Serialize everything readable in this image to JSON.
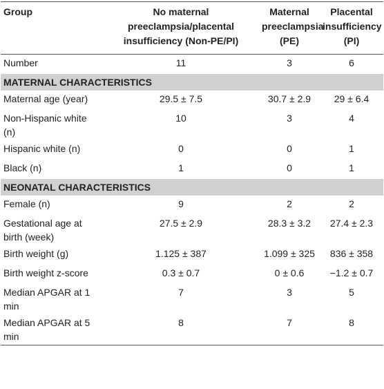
{
  "table": {
    "header": [
      "Group",
      "No maternal preeclampsia/placental insufficiency (Non-PE/PI)",
      "Maternal preeclampsia (PE)",
      "Placental insufficiency (PI)"
    ],
    "rows": [
      {
        "cells": [
          "Number",
          "11",
          "3",
          "6"
        ]
      },
      {
        "section": "MATERNAL CHARACTERISTICS"
      },
      {
        "cells": [
          "Maternal age (year)",
          "29.5 ± 7.5",
          "30.7 ± 2.9",
          "29 ± 6.4"
        ]
      },
      {
        "cells": [
          "Non-Hispanic white (n)",
          "10",
          "3",
          "4"
        ]
      },
      {
        "cells": [
          "Hispanic white (n)",
          "0",
          "0",
          "1"
        ]
      },
      {
        "cells": [
          "Black (n)",
          "1",
          "0",
          "1"
        ]
      },
      {
        "section": "NEONATAL CHARACTERISTICS"
      },
      {
        "cells": [
          "Female (n)",
          "9",
          "2",
          "2"
        ]
      },
      {
        "cells": [
          "Gestational age at birth (week)",
          "27.5 ± 2.9",
          "28.3 ± 3.2",
          "27.4 ± 2.3"
        ]
      },
      {
        "cells": [
          "Birth weight (g)",
          "1.125 ± 387",
          "1.099 ± 325",
          "836 ± 358"
        ]
      },
      {
        "cells": [
          "Birth weight z-score",
          "0.3 ± 0.7",
          "0 ± 0.6",
          "−1.2 ± 0.7"
        ]
      },
      {
        "cells": [
          "Median APGAR at 1 min",
          "7",
          "3",
          "5"
        ]
      },
      {
        "cells": [
          "Median APGAR at 5 min",
          "8",
          "7",
          "8"
        ]
      }
    ]
  }
}
